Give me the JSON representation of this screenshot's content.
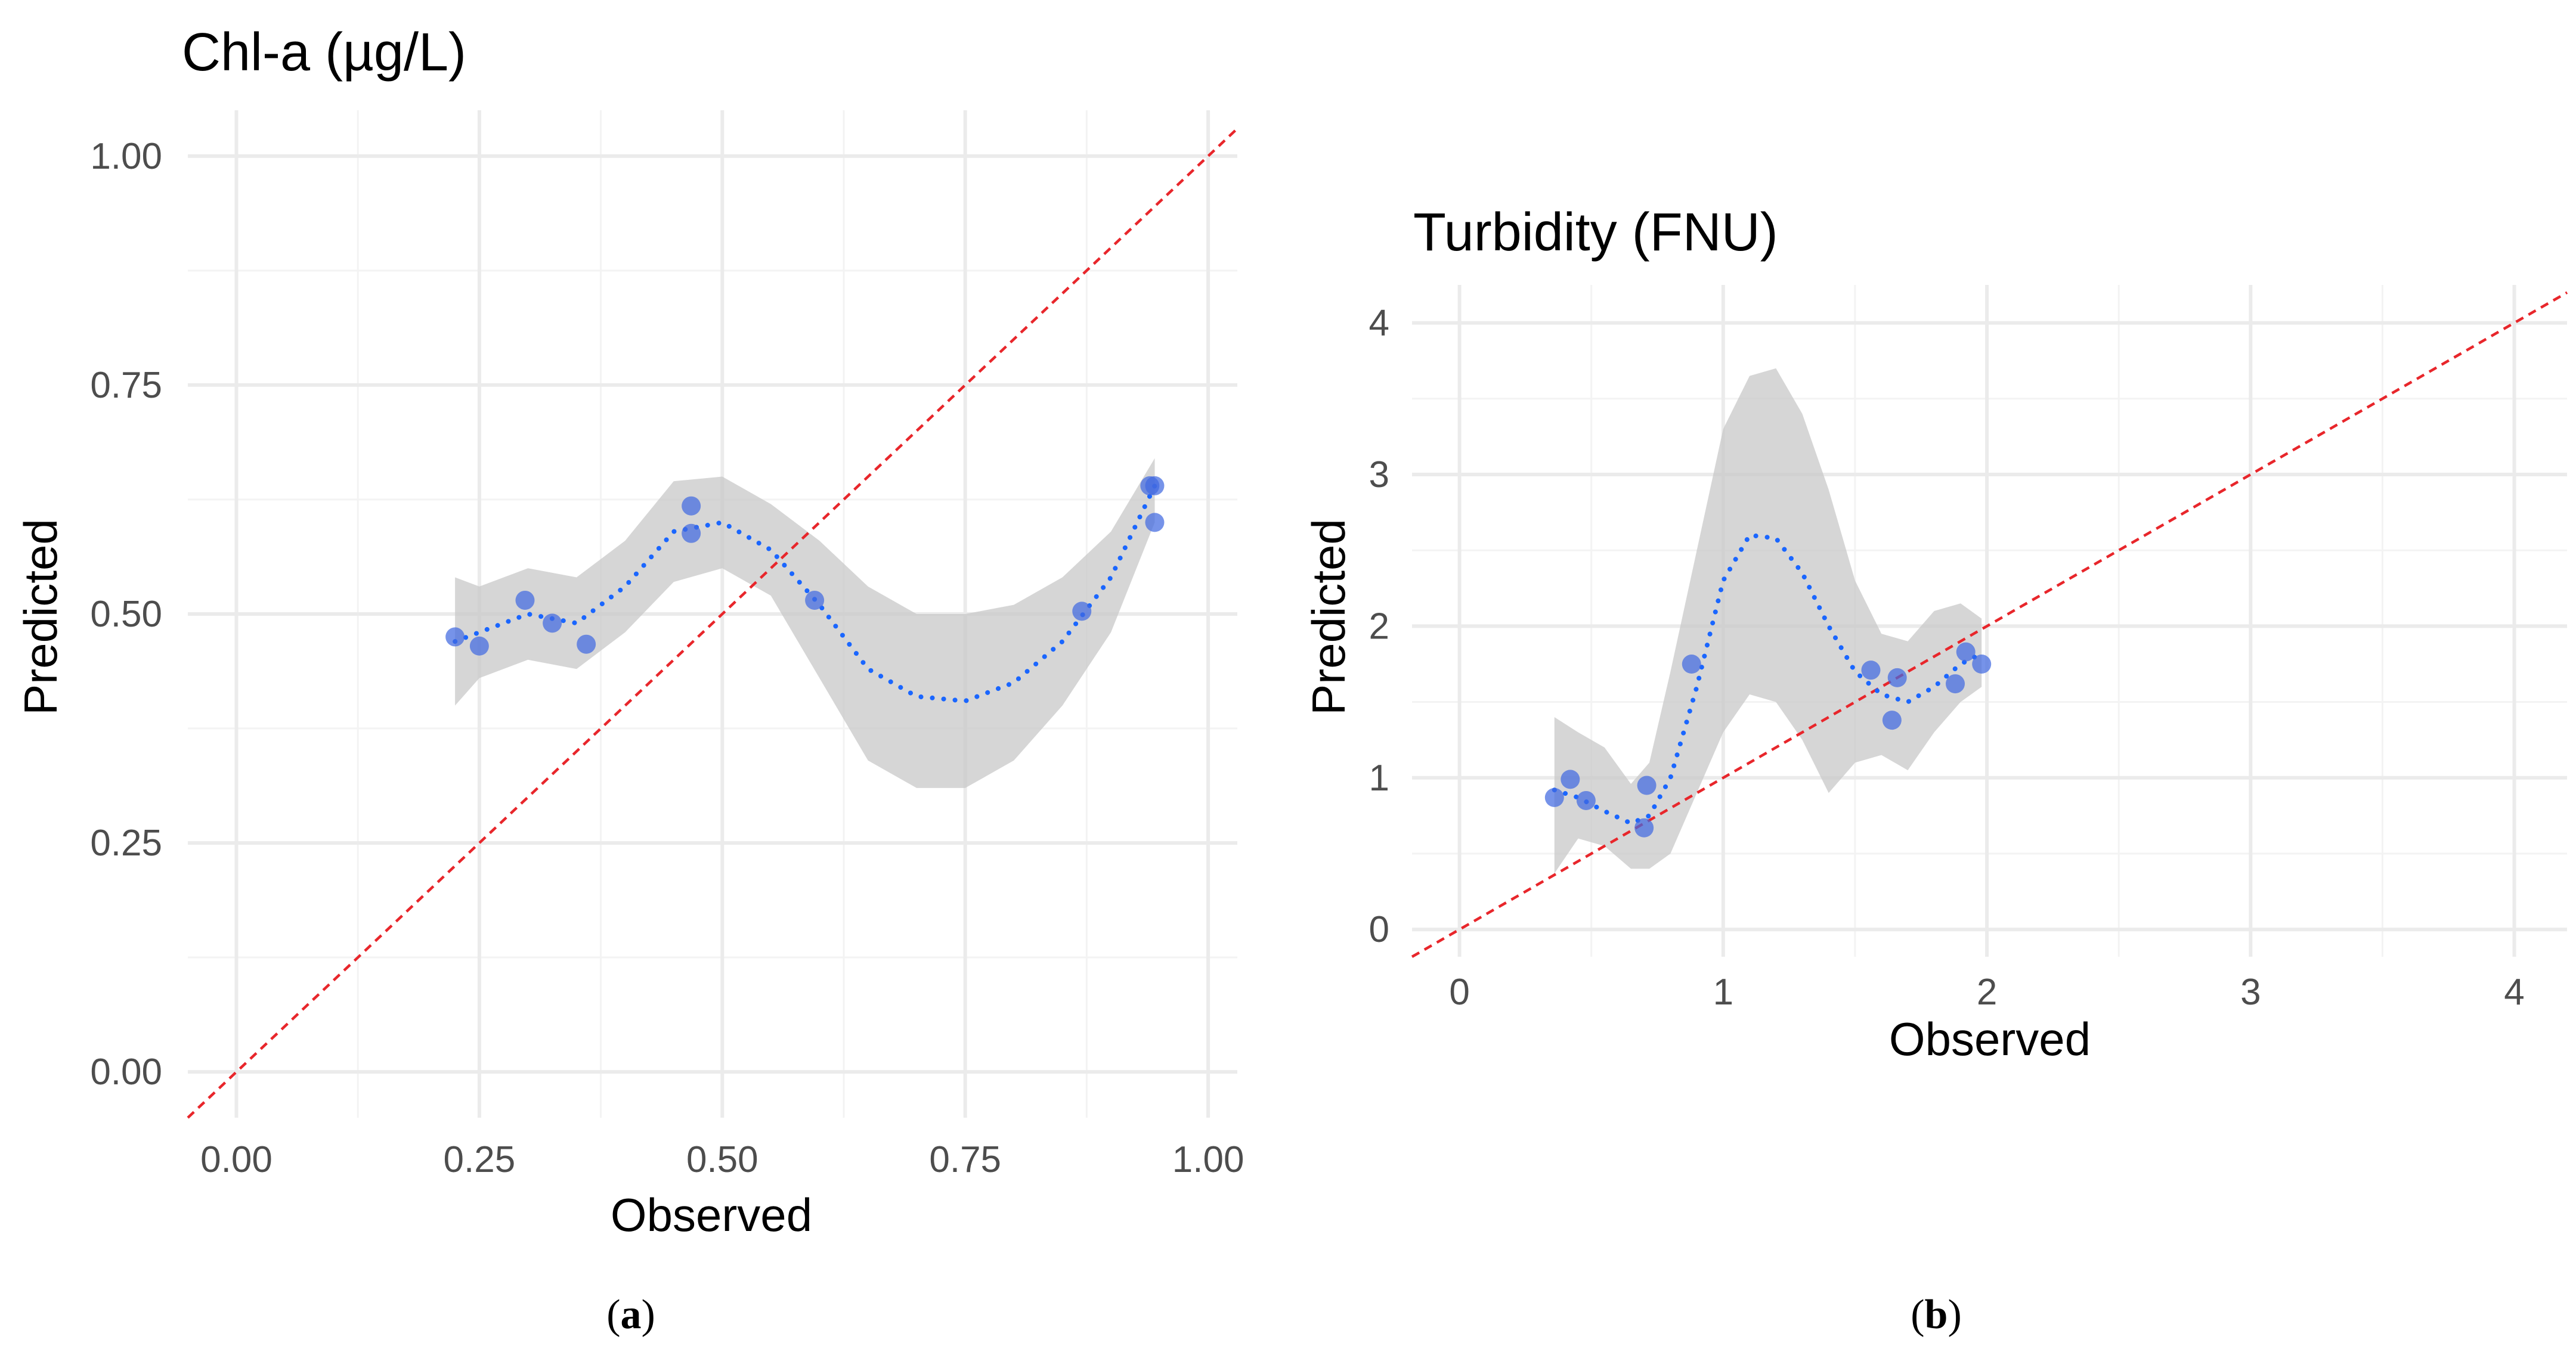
{
  "chart_data": [
    {
      "type": "scatter",
      "title": "Chl-a (µg/L)",
      "xlabel": "Observed",
      "ylabel": "Predicted",
      "caption_letter": "a",
      "xlim": [
        -0.05,
        1.03
      ],
      "ylim": [
        -0.05,
        1.05
      ],
      "xticks": [
        0.0,
        0.25,
        0.5,
        0.75,
        1.0
      ],
      "xtick_labels": [
        "0.00",
        "0.25",
        "0.50",
        "0.75",
        "1.00"
      ],
      "yticks": [
        0.0,
        0.25,
        0.5,
        0.75,
        1.0
      ],
      "ytick_labels": [
        "0.00",
        "0.25",
        "0.50",
        "0.75",
        "1.00"
      ],
      "grid": true,
      "points": [
        {
          "x": 0.225,
          "y": 0.475
        },
        {
          "x": 0.25,
          "y": 0.465
        },
        {
          "x": 0.297,
          "y": 0.515
        },
        {
          "x": 0.325,
          "y": 0.49
        },
        {
          "x": 0.36,
          "y": 0.467
        },
        {
          "x": 0.468,
          "y": 0.618
        },
        {
          "x": 0.468,
          "y": 0.588
        },
        {
          "x": 0.595,
          "y": 0.515
        },
        {
          "x": 0.87,
          "y": 0.503
        },
        {
          "x": 0.94,
          "y": 0.64
        },
        {
          "x": 0.945,
          "y": 0.64
        },
        {
          "x": 0.945,
          "y": 0.6
        }
      ],
      "smooth": {
        "x": [
          0.225,
          0.25,
          0.3,
          0.35,
          0.4,
          0.45,
          0.5,
          0.55,
          0.6,
          0.65,
          0.7,
          0.75,
          0.8,
          0.85,
          0.9,
          0.945
        ],
        "y": [
          0.47,
          0.48,
          0.5,
          0.49,
          0.53,
          0.59,
          0.6,
          0.57,
          0.51,
          0.44,
          0.41,
          0.405,
          0.425,
          0.47,
          0.54,
          0.64
        ],
        "lower": [
          0.4,
          0.43,
          0.45,
          0.44,
          0.48,
          0.535,
          0.55,
          0.52,
          0.43,
          0.34,
          0.31,
          0.31,
          0.34,
          0.4,
          0.48,
          0.6
        ],
        "upper": [
          0.54,
          0.53,
          0.55,
          0.54,
          0.58,
          0.645,
          0.65,
          0.62,
          0.58,
          0.53,
          0.5,
          0.5,
          0.51,
          0.54,
          0.59,
          0.67
        ]
      },
      "reference_line": {
        "slope": 1,
        "intercept": 0,
        "style": "dashed",
        "color": "#e8262b"
      }
    },
    {
      "type": "scatter",
      "title": "Turbidity (FNU)",
      "xlabel": "Observed",
      "ylabel": "Predicted",
      "caption_letter": "b",
      "xlim": [
        -0.18,
        4.2
      ],
      "ylim": [
        -0.18,
        4.25
      ],
      "xticks": [
        0,
        1,
        2,
        3,
        4
      ],
      "xtick_labels": [
        "0",
        "1",
        "2",
        "3",
        "4"
      ],
      "yticks": [
        0,
        1,
        2,
        3,
        4
      ],
      "ytick_labels": [
        "0",
        "1",
        "2",
        "3",
        "4"
      ],
      "grid": true,
      "points": [
        {
          "x": 0.36,
          "y": 0.87
        },
        {
          "x": 0.42,
          "y": 0.99
        },
        {
          "x": 0.48,
          "y": 0.85
        },
        {
          "x": 0.7,
          "y": 0.67
        },
        {
          "x": 0.71,
          "y": 0.95
        },
        {
          "x": 0.88,
          "y": 1.75
        },
        {
          "x": 1.56,
          "y": 1.71
        },
        {
          "x": 1.64,
          "y": 1.38
        },
        {
          "x": 1.66,
          "y": 1.66
        },
        {
          "x": 1.88,
          "y": 1.62
        },
        {
          "x": 1.92,
          "y": 1.83
        },
        {
          "x": 1.98,
          "y": 1.75
        }
      ],
      "smooth": {
        "x": [
          0.36,
          0.45,
          0.55,
          0.65,
          0.72,
          0.8,
          0.9,
          1.0,
          1.1,
          1.2,
          1.3,
          1.4,
          1.5,
          1.6,
          1.7,
          1.8,
          1.9,
          1.98
        ],
        "y": [
          0.92,
          0.87,
          0.78,
          0.7,
          0.75,
          1.0,
          1.6,
          2.3,
          2.6,
          2.58,
          2.35,
          2.0,
          1.7,
          1.55,
          1.5,
          1.6,
          1.75,
          1.82
        ],
        "lower": [
          0.37,
          0.6,
          0.55,
          0.4,
          0.4,
          0.5,
          0.9,
          1.3,
          1.55,
          1.5,
          1.25,
          0.9,
          1.1,
          1.15,
          1.05,
          1.3,
          1.5,
          1.6
        ],
        "upper": [
          1.4,
          1.3,
          1.2,
          0.96,
          1.1,
          1.7,
          2.5,
          3.3,
          3.65,
          3.7,
          3.4,
          2.9,
          2.3,
          1.95,
          1.9,
          2.1,
          2.15,
          2.05
        ]
      },
      "reference_line": {
        "slope": 1,
        "intercept": 0,
        "style": "dashed",
        "color": "#e8262b"
      }
    }
  ],
  "colors": {
    "point": "#4169e1",
    "smooth_line": "#1a66ff",
    "band": "#c8c8c8",
    "grid_major": "#ebebeb",
    "grid_minor": "#f3f3f3",
    "tick_text": "#4d4d4d",
    "label_text": "#000000"
  }
}
